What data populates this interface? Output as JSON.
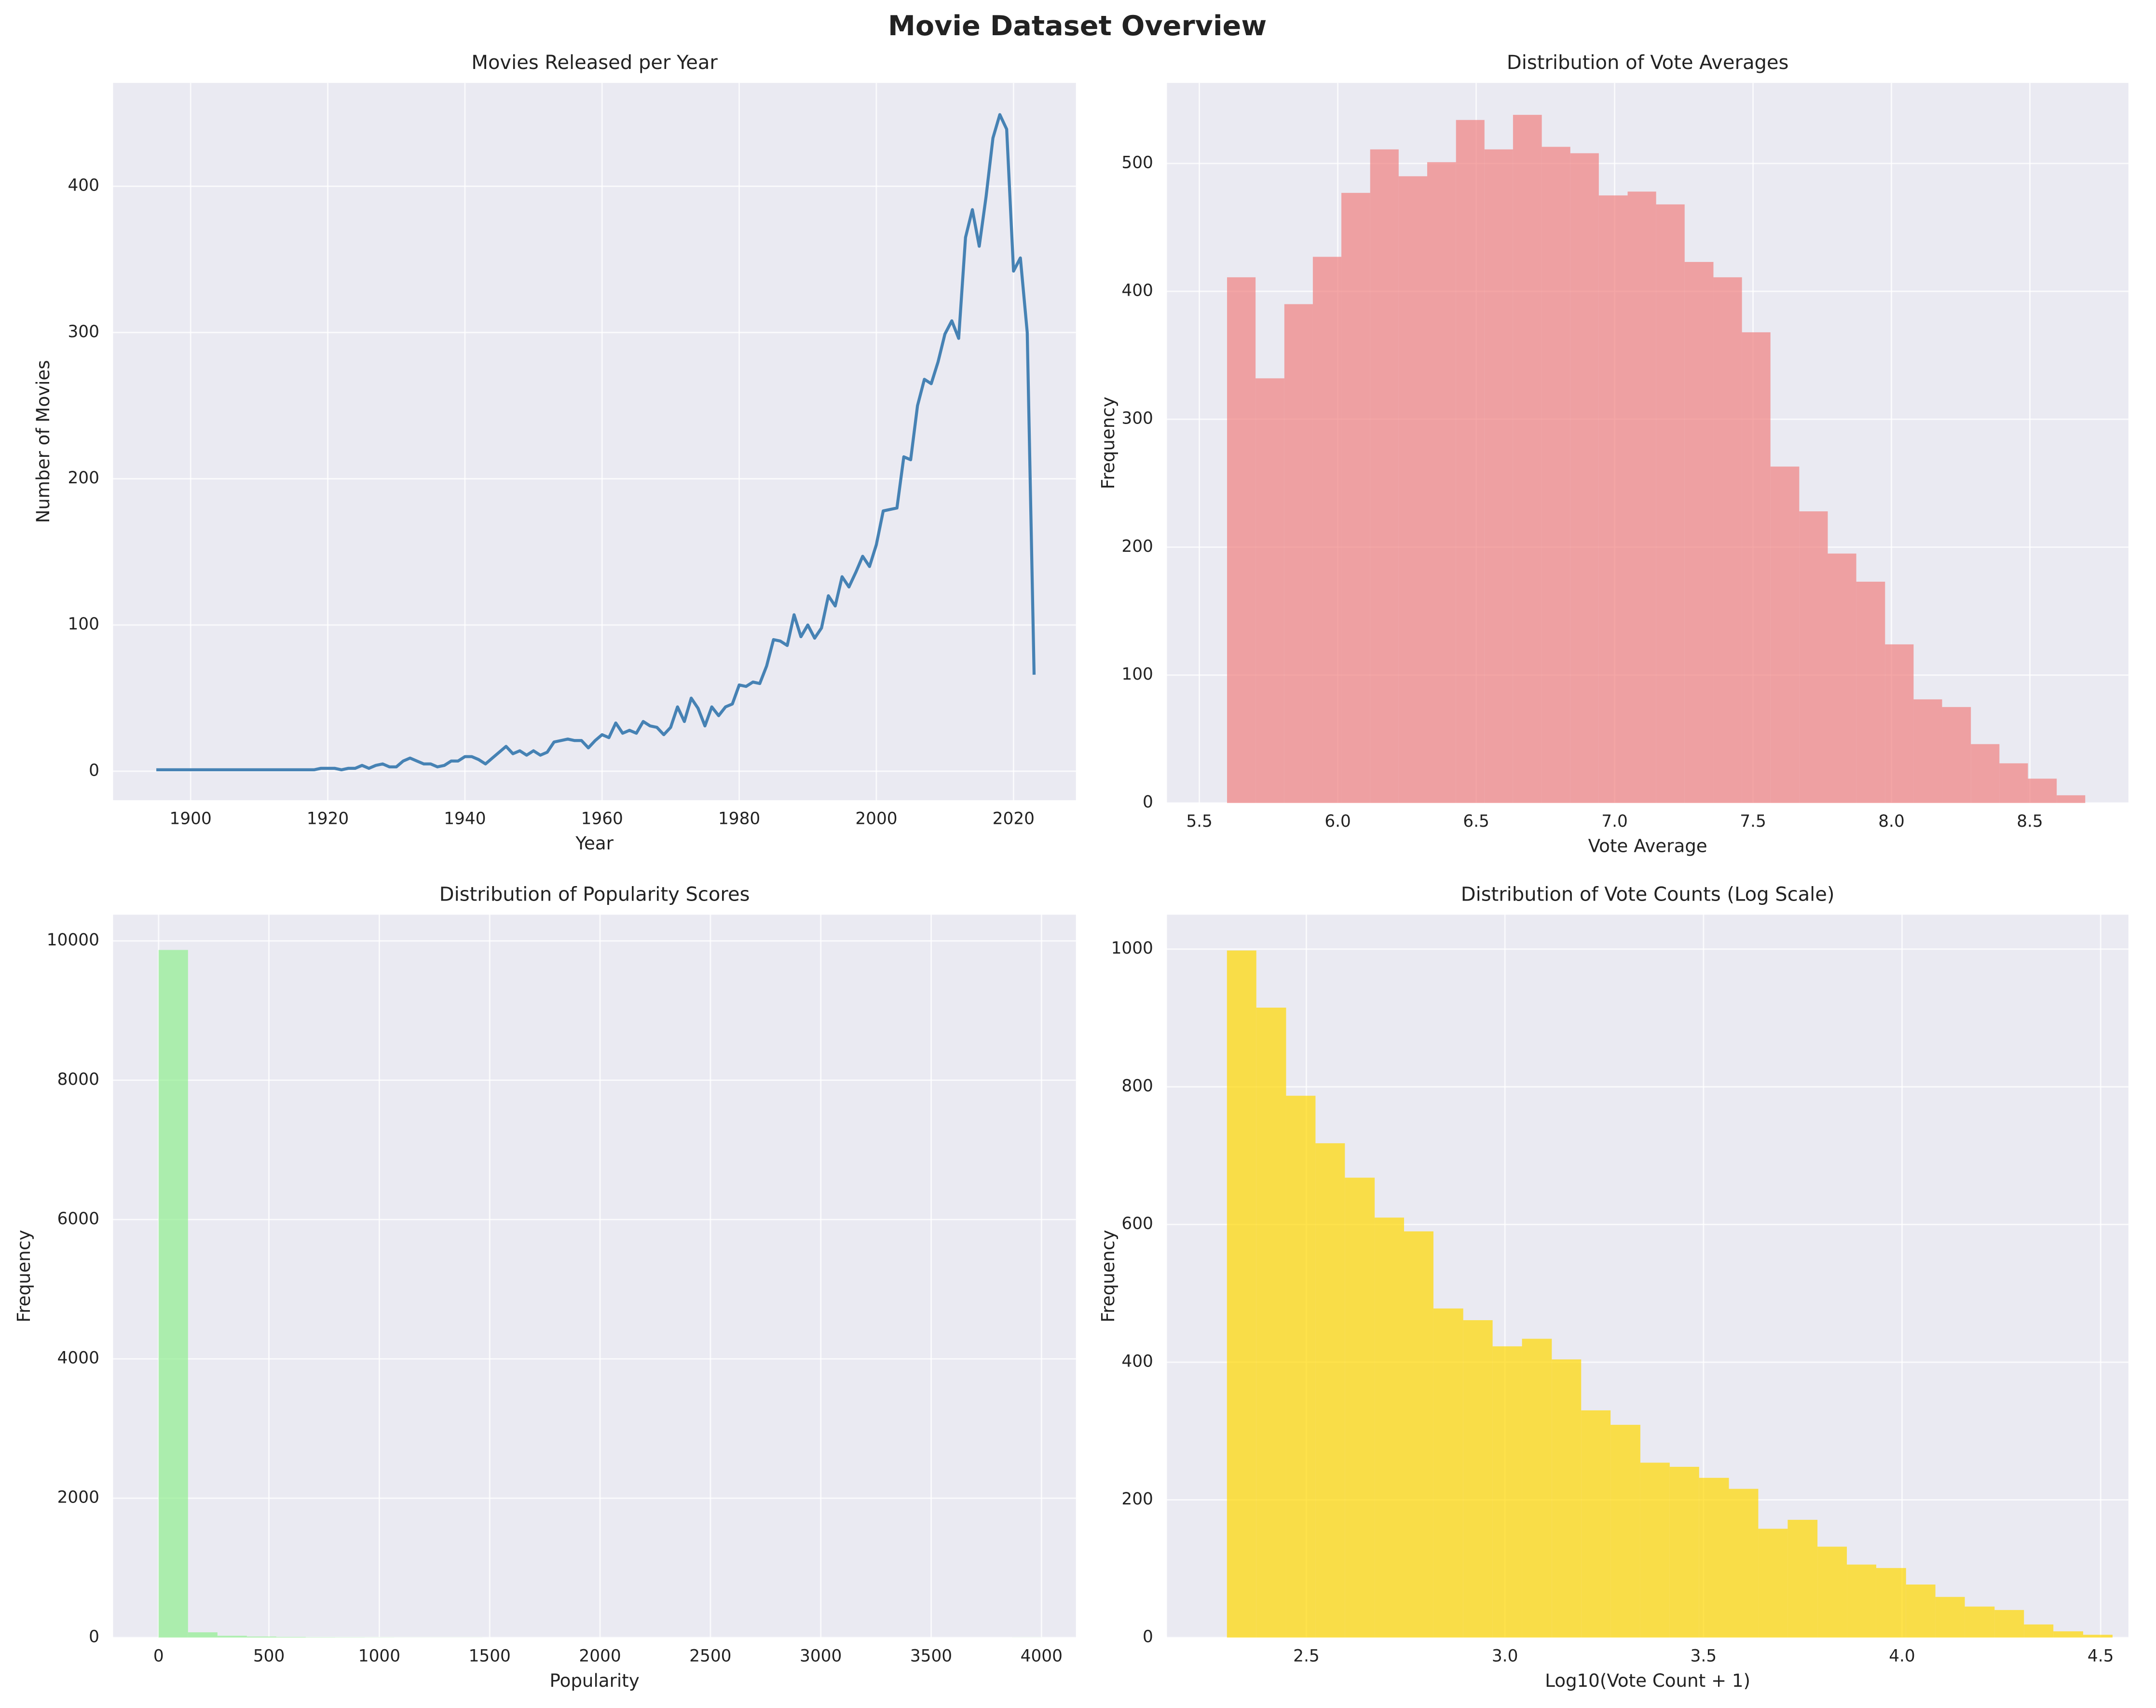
{
  "title": "Movie Dataset Overview",
  "chart_data": [
    {
      "type": "line",
      "title": "Movies Released per Year",
      "xlabel": "Year",
      "ylabel": "Number of Movies",
      "color": "#4682b4",
      "grid": true,
      "x": [
        1895,
        1896,
        1897,
        1898,
        1899,
        1900,
        1901,
        1902,
        1903,
        1904,
        1905,
        1906,
        1907,
        1908,
        1909,
        1910,
        1911,
        1912,
        1913,
        1914,
        1915,
        1916,
        1917,
        1918,
        1919,
        1920,
        1921,
        1922,
        1923,
        1924,
        1925,
        1926,
        1927,
        1928,
        1929,
        1930,
        1931,
        1932,
        1933,
        1934,
        1935,
        1936,
        1937,
        1938,
        1939,
        1940,
        1941,
        1942,
        1943,
        1944,
        1945,
        1946,
        1947,
        1948,
        1949,
        1950,
        1951,
        1952,
        1953,
        1954,
        1955,
        1956,
        1957,
        1958,
        1959,
        1960,
        1961,
        1962,
        1963,
        1964,
        1965,
        1966,
        1967,
        1968,
        1969,
        1970,
        1971,
        1972,
        1973,
        1974,
        1975,
        1976,
        1977,
        1978,
        1979,
        1980,
        1981,
        1982,
        1983,
        1984,
        1985,
        1986,
        1987,
        1988,
        1989,
        1990,
        1991,
        1992,
        1993,
        1994,
        1995,
        1996,
        1997,
        1998,
        1999,
        2000,
        2001,
        2002,
        2003,
        2004,
        2005,
        2006,
        2007,
        2008,
        2009,
        2010,
        2011,
        2012,
        2013,
        2014,
        2015,
        2016,
        2017,
        2018,
        2019,
        2020,
        2021,
        2022,
        2023
      ],
      "values": [
        1,
        1,
        1,
        1,
        1,
        1,
        1,
        1,
        1,
        1,
        1,
        1,
        1,
        1,
        1,
        1,
        1,
        1,
        1,
        1,
        1,
        1,
        1,
        1,
        2,
        2,
        2,
        1,
        2,
        2,
        4,
        2,
        4,
        5,
        3,
        3,
        7,
        9,
        7,
        5,
        5,
        3,
        4,
        7,
        7,
        10,
        10,
        8,
        5,
        9,
        13,
        17,
        12,
        14,
        11,
        14,
        11,
        13,
        20,
        21,
        22,
        21,
        21,
        16,
        21,
        25,
        23,
        33,
        26,
        28,
        26,
        34,
        31,
        30,
        25,
        30,
        44,
        34,
        50,
        43,
        31,
        44,
        38,
        44,
        46,
        59,
        58,
        61,
        60,
        72,
        90,
        89,
        86,
        107,
        92,
        100,
        91,
        98,
        120,
        113,
        133,
        126,
        136,
        147,
        140,
        155,
        178,
        179,
        180,
        215,
        213,
        250,
        268,
        265,
        280,
        299,
        308,
        296,
        365,
        384,
        359,
        393,
        433,
        449,
        439,
        342,
        351,
        300,
        66
      ],
      "xlim": [
        1888.7,
        2029.1
      ],
      "ylim": [
        -19.8,
        470.7
      ],
      "xticks": [
        1900,
        1920,
        1940,
        1960,
        1980,
        2000,
        2020
      ],
      "yticks": [
        0,
        100,
        200,
        300,
        400
      ]
    },
    {
      "type": "histogram",
      "title": "Distribution of Vote Averages",
      "xlabel": "Vote Average",
      "ylabel": "Frequency",
      "color": "#f08080",
      "alpha": 0.7,
      "grid": true,
      "bins": [
        5.6,
        5.703,
        5.807,
        5.91,
        6.013,
        6.117,
        6.22,
        6.323,
        6.427,
        6.53,
        6.633,
        6.737,
        6.84,
        6.943,
        7.047,
        7.15,
        7.253,
        7.357,
        7.46,
        7.563,
        7.667,
        7.77,
        7.873,
        7.977,
        8.08,
        8.183,
        8.287,
        8.39,
        8.493,
        8.597,
        8.7
      ],
      "values": [
        411,
        332,
        390,
        427,
        477,
        511,
        490,
        501,
        534,
        511,
        538,
        513,
        508,
        475,
        478,
        468,
        423,
        411,
        368,
        263,
        228,
        195,
        173,
        124,
        81,
        75,
        46,
        31,
        19,
        6
      ],
      "xlim": [
        5.383,
        8.856
      ],
      "ylim": [
        0,
        563
      ],
      "xticks": [
        5.5,
        {
          "value": 6,
          "label": "6.0"
        },
        6.5,
        {
          "value": 7,
          "label": "7.0"
        },
        7.5,
        {
          "value": 8,
          "label": "8.0"
        },
        8.5
      ],
      "yticks": [
        0,
        100,
        200,
        300,
        400,
        500
      ]
    },
    {
      "type": "histogram",
      "title": "Distribution of Popularity Scores",
      "xlabel": "Popularity",
      "ylabel": "Frequency",
      "color": "#90ee90",
      "alpha": 0.7,
      "grid": true,
      "bins": [
        0,
        133.3,
        266.7,
        400,
        533.3,
        666.7,
        800,
        933.3,
        1066.7,
        1200,
        1333.3,
        1466.7,
        1600,
        1733.3,
        1866.7,
        2000,
        2133.3,
        2266.7,
        2400,
        2533.3,
        2666.7,
        2800,
        2933.3,
        3066.7,
        3200,
        3333.3,
        3466.7,
        3600,
        3733.3,
        3866.7,
        4000
      ],
      "values": [
        9870,
        75,
        25,
        14,
        8,
        4,
        3,
        2,
        1,
        1,
        1,
        0,
        0,
        0,
        0,
        0,
        0,
        0,
        0,
        0,
        0,
        0,
        0,
        0,
        0,
        0,
        0,
        0,
        0,
        1
      ],
      "xlim": [
        -206,
        4156
      ],
      "ylim": [
        0,
        10376
      ],
      "xticks": [
        0,
        500,
        1000,
        1500,
        2000,
        2500,
        3000,
        3500,
        4000
      ],
      "yticks": [
        0,
        2000,
        4000,
        6000,
        8000,
        10000
      ]
    },
    {
      "type": "histogram",
      "title": "Distribution of Vote Counts (Log Scale)",
      "xlabel": "Log10(Vote Count + 1)",
      "ylabel": "Frequency",
      "color": "#ffd700",
      "alpha": 0.7,
      "grid": true,
      "bins": [
        2.3,
        2.374,
        2.449,
        2.523,
        2.597,
        2.672,
        2.746,
        2.82,
        2.895,
        2.969,
        3.043,
        3.118,
        3.192,
        3.266,
        3.341,
        3.415,
        3.489,
        3.564,
        3.638,
        3.712,
        3.787,
        3.861,
        3.935,
        4.01,
        4.084,
        4.158,
        4.233,
        4.307,
        4.381,
        4.456,
        4.53
      ],
      "values": [
        998,
        915,
        787,
        718,
        668,
        610,
        590,
        478,
        461,
        423,
        434,
        404,
        330,
        309,
        254,
        248,
        232,
        216,
        158,
        171,
        132,
        106,
        101,
        77,
        59,
        45,
        40,
        19,
        9,
        4
      ],
      "xlim": [
        2.149,
        4.57
      ],
      "ylim": [
        0,
        1050
      ],
      "xticks": [
        2.5,
        {
          "value": 3,
          "label": "3.0"
        },
        3.5,
        {
          "value": 4,
          "label": "4.0"
        },
        4.5
      ],
      "yticks": [
        0,
        200,
        400,
        600,
        800,
        1000
      ]
    }
  ]
}
